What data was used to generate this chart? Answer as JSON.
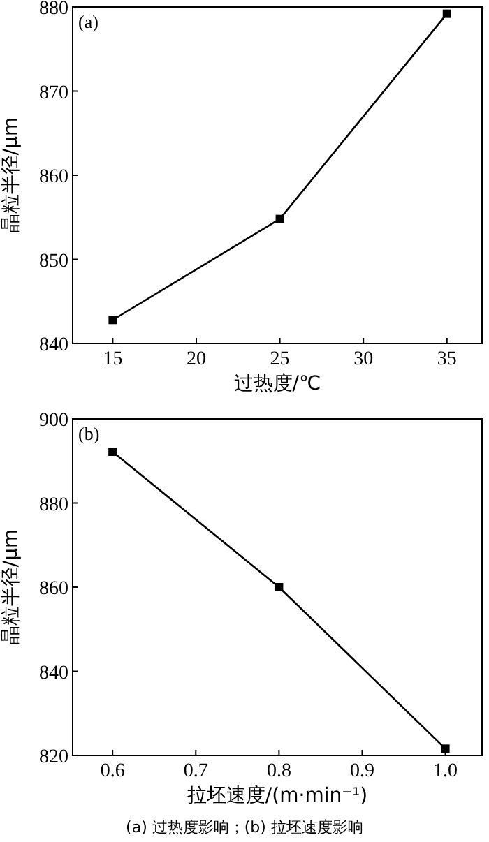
{
  "chart_data": [
    {
      "type": "line",
      "title": "(a)",
      "xlabel": "过热度/℃",
      "ylabel": "晶粒半径/μm",
      "x": [
        15,
        25,
        35
      ],
      "series": [
        {
          "color": "#000000",
          "values": [
            842.8,
            854.8,
            879.2
          ]
        }
      ],
      "xlim": [
        12.6,
        37.1
      ],
      "ylim": [
        840,
        880
      ],
      "xticks": [
        15,
        20,
        25,
        30,
        35
      ],
      "yticks": [
        840,
        850,
        860,
        870,
        880
      ],
      "marker": "square",
      "line_style": "solid"
    },
    {
      "type": "line",
      "title": "(b)",
      "xlabel": "拉坯速度/(m·min⁻¹)",
      "ylabel": "晶粒半径/μm",
      "x": [
        0.6,
        0.8,
        1.0
      ],
      "series": [
        {
          "color": "#000000",
          "values": [
            892.2,
            860,
            821.6
          ]
        }
      ],
      "xlim": [
        0.552,
        1.044
      ],
      "ylim": [
        820,
        900
      ],
      "xticks": [
        0.6,
        0.7,
        0.8,
        0.9,
        {
          "value": 1.0,
          "label": "1.0"
        }
      ],
      "yticks": [
        820,
        840,
        860,
        880,
        900
      ],
      "marker": "square",
      "line_style": "solid",
      "annotations": [
        "(a) 过热度影响；(b) 拉坯速度影响"
      ]
    }
  ]
}
